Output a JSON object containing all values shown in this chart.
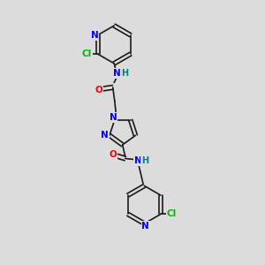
{
  "bg_color": "#dcdcdc",
  "bond_color": "#1a1a1a",
  "N_color": "#0000ff",
  "O_color": "#ff0000",
  "Cl_color": "#00bb00",
  "H_color": "#008080",
  "bond_width": 1.2,
  "font_size": 7.5,
  "fig_size": [
    3.0,
    3.0
  ],
  "dpi": 100,
  "xlim": [
    0,
    10
  ],
  "ylim": [
    0,
    10
  ]
}
